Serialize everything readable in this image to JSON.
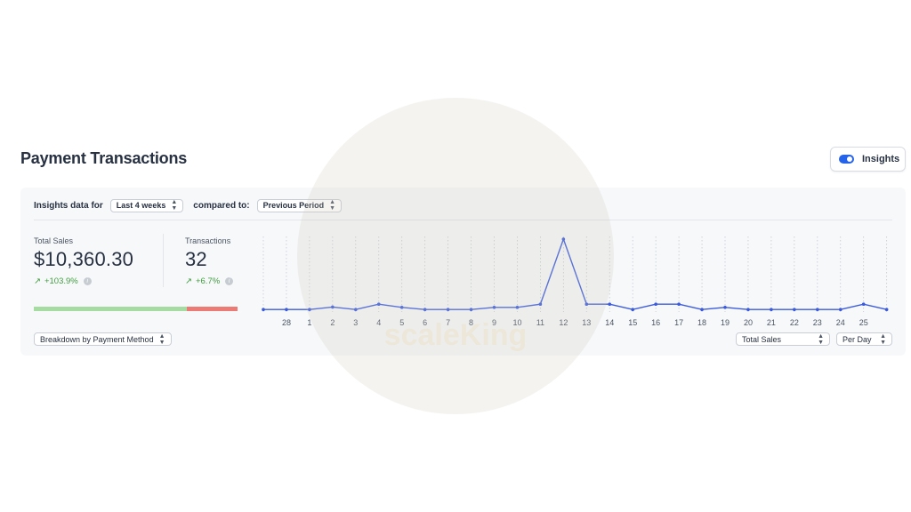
{
  "header": {
    "title": "Payment Transactions",
    "insights_label": "Insights"
  },
  "filters": {
    "prefix": "Insights data for",
    "period": "Last 4 weeks",
    "compared_label": "compared to:",
    "comparison": "Previous Period"
  },
  "metrics": {
    "total_sales": {
      "label": "Total Sales",
      "value": "$10,360.30",
      "change": "+103.9%"
    },
    "transactions": {
      "label": "Transactions",
      "value": "32",
      "change": "+6.7%"
    }
  },
  "ratio_bar": {
    "green_fraction": 0.75
  },
  "controls": {
    "breakdown": "Breakdown by Payment Method",
    "metric": "Total Sales",
    "interval": "Per Day"
  },
  "watermark": {
    "text": "scaleKing"
  },
  "colors": {
    "line": "#3b5bdb",
    "accent": "#2563eb",
    "positive": "#3f9e3f"
  },
  "chart_data": {
    "type": "line",
    "categories": [
      "",
      "28",
      "1",
      "2",
      "3",
      "4",
      "5",
      "6",
      "7",
      "8",
      "9",
      "10",
      "11",
      "12",
      "13",
      "14",
      "15",
      "16",
      "17",
      "18",
      "19",
      "20",
      "21",
      "22",
      "23",
      "24",
      "25",
      ""
    ],
    "series": [
      {
        "values": [
          10,
          10,
          10,
          45,
          10,
          85,
          40,
          10,
          10,
          10,
          40,
          40,
          85,
          1000,
          85,
          85,
          10,
          85,
          85,
          10,
          40,
          10,
          10,
          10,
          10,
          10,
          85,
          10
        ]
      }
    ],
    "ylim": [
      0,
      1000
    ],
    "grid": "vertical dotted"
  }
}
